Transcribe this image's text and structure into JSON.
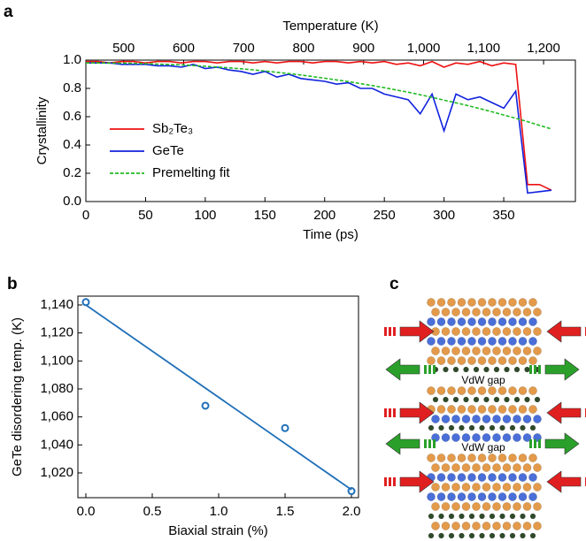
{
  "chart_data": [
    {
      "type": "line",
      "panel_label": "a",
      "x_label": "Time (ps)",
      "x2_label": "Temperature (K)",
      "y_label": "Crystallinity",
      "xlim": [
        0,
        410
      ],
      "xticks": [
        0,
        50,
        100,
        150,
        200,
        250,
        300,
        350
      ],
      "x2lim": [
        437,
        1253
      ],
      "x2ticks": [
        500,
        600,
        700,
        800,
        900,
        {
          "value": 1000,
          "label": "1,000"
        },
        {
          "value": 1100,
          "label": "1,100"
        },
        {
          "value": 1200,
          "label": "1,200"
        }
      ],
      "ylim": [
        0,
        1
      ],
      "yticks": [
        {
          "value": 0,
          "label": "0.0"
        },
        0.2,
        0.4,
        0.6,
        0.8,
        {
          "value": 1,
          "label": "1.0"
        }
      ],
      "legend": "left",
      "x": [
        0,
        10,
        20,
        30,
        40,
        50,
        60,
        70,
        80,
        90,
        100,
        110,
        120,
        130,
        140,
        150,
        160,
        170,
        180,
        190,
        200,
        210,
        220,
        230,
        240,
        250,
        260,
        270,
        280,
        290,
        300,
        310,
        320,
        330,
        340,
        350,
        360,
        370,
        380,
        390
      ],
      "series": [
        {
          "name": "Sb₂Te₃",
          "color": "#ee1111",
          "dash": false,
          "values": [
            0.99,
            0.99,
            0.98,
            0.99,
            0.99,
            0.98,
            0.99,
            0.99,
            0.98,
            0.99,
            0.99,
            0.98,
            0.99,
            0.99,
            0.98,
            0.99,
            0.98,
            0.99,
            0.99,
            0.98,
            0.99,
            0.99,
            0.98,
            0.99,
            0.98,
            0.99,
            0.97,
            0.98,
            0.96,
            0.99,
            0.95,
            0.98,
            0.97,
            0.99,
            0.96,
            0.98,
            0.97,
            0.12,
            0.12,
            0.08
          ]
        },
        {
          "name": "GeTe",
          "color": "#1122dd",
          "dash": false,
          "values": [
            0.98,
            0.98,
            0.98,
            0.97,
            0.97,
            0.97,
            0.96,
            0.96,
            0.95,
            0.97,
            0.94,
            0.95,
            0.93,
            0.92,
            0.9,
            0.92,
            0.88,
            0.9,
            0.87,
            0.86,
            0.85,
            0.83,
            0.84,
            0.8,
            0.8,
            0.76,
            0.74,
            0.72,
            0.62,
            0.76,
            0.5,
            0.76,
            0.72,
            0.74,
            0.7,
            0.66,
            0.78,
            0.06,
            0.07,
            0.08
          ]
        },
        {
          "name": "Premelting fit",
          "color": "#22bb22",
          "dash": true,
          "values": [
            0.98,
            0.98,
            0.979,
            0.978,
            0.977,
            0.975,
            0.972,
            0.969,
            0.966,
            0.962,
            0.956,
            0.951,
            0.945,
            0.939,
            0.931,
            0.923,
            0.914,
            0.905,
            0.895,
            0.884,
            0.872,
            0.86,
            0.848,
            0.834,
            0.82,
            0.805,
            0.789,
            0.773,
            0.755,
            0.737,
            0.717,
            0.698,
            0.678,
            0.657,
            0.635,
            0.612,
            0.589,
            0.565,
            0.539,
            0.513
          ]
        }
      ]
    },
    {
      "type": "scatter",
      "panel_label": "b",
      "x_label": "Biaxial strain (%)",
      "y_label": "GeTe disordering temp. (K)",
      "xlim": [
        -0.06,
        2.053
      ],
      "xticks": [
        {
          "value": 0,
          "label": "0.0"
        },
        0.5,
        {
          "value": 1,
          "label": "1.0"
        },
        1.5,
        {
          "value": 2,
          "label": "2.0"
        }
      ],
      "ylim": [
        1002.3,
        1146.3
      ],
      "yticks": [
        {
          "value": 1020,
          "label": "1,020"
        },
        {
          "value": 1040,
          "label": "1,040"
        },
        {
          "value": 1060,
          "label": "1,060"
        },
        {
          "value": 1080,
          "label": "1,080"
        },
        {
          "value": 1100,
          "label": "1,100"
        },
        {
          "value": 1120,
          "label": "1,120"
        },
        {
          "value": 1140,
          "label": "1,140"
        }
      ],
      "x": [
        0,
        0.9,
        1.5,
        2.0
      ],
      "values": [
        1142,
        1068,
        1052,
        1007
      ],
      "color": "#1f6fb8",
      "fit_line": {
        "x": [
          0,
          2.0
        ],
        "values": [
          1140,
          1008
        ]
      }
    }
  ],
  "diagram": {
    "panel_label": "c",
    "gap_labels": [
      "VdW gap",
      "VdW gap"
    ]
  }
}
